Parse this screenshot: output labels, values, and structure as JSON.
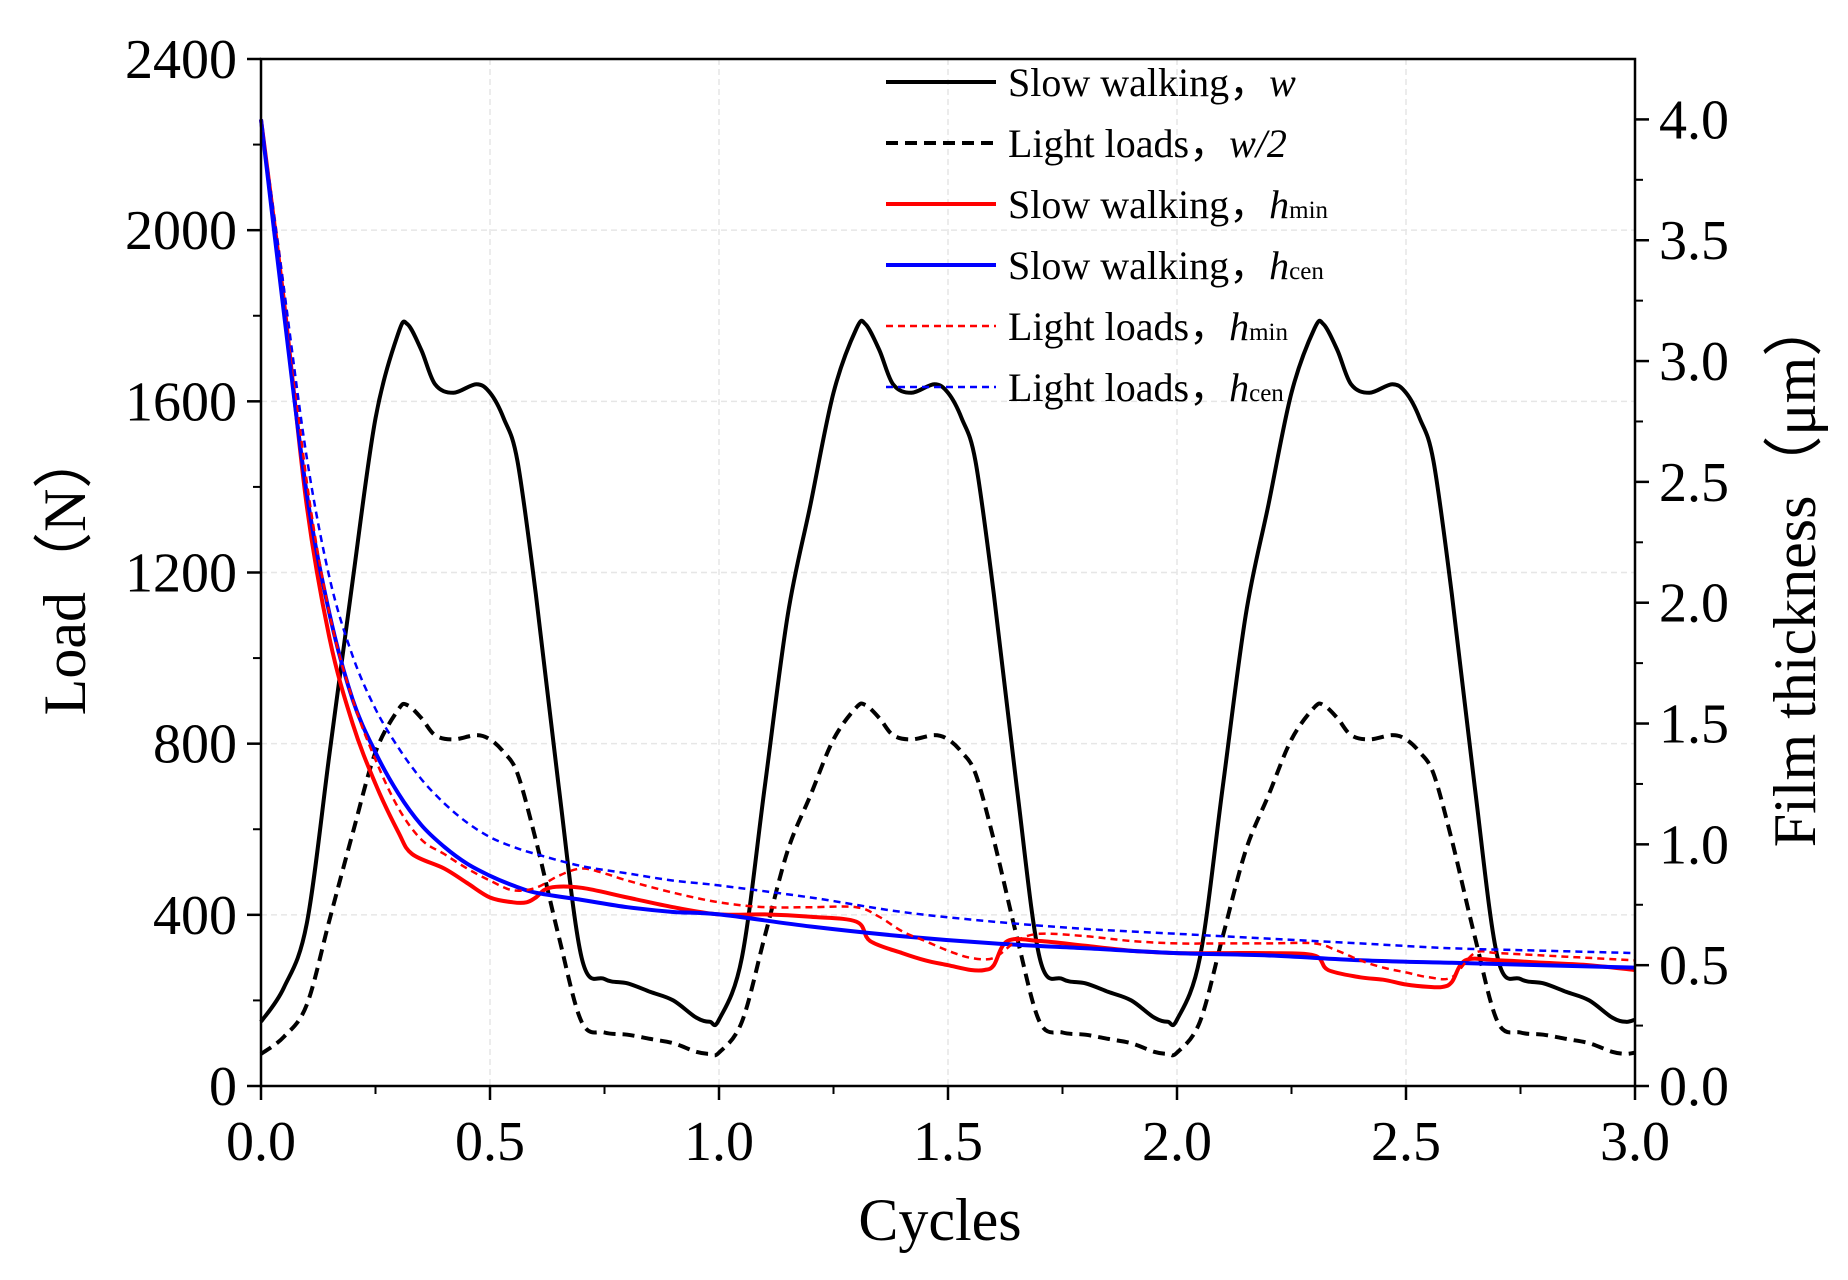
{
  "chart_data": {
    "type": "line",
    "title": "",
    "xlabel": "Cycles",
    "ylabel_left": "Load（N）",
    "ylabel_right": "Film thickness（μm）",
    "xlim": [
      0,
      3
    ],
    "ylim_left": [
      0,
      2400
    ],
    "ylim_right": [
      0,
      4.25
    ],
    "grid": true,
    "legend_position": "top-right",
    "x_ticks": [
      "0.0",
      "0.5",
      "1.0",
      "1.5",
      "2.0",
      "2.5",
      "3.0"
    ],
    "y_ticks_left": [
      "0",
      "400",
      "800",
      "1200",
      "1600",
      "2000",
      "2400"
    ],
    "y_ticks_right": [
      "0.0",
      "0.5",
      "1.0",
      "1.5",
      "2.0",
      "2.5",
      "3.0",
      "3.5",
      "4.0"
    ],
    "legend": [
      {
        "label": "Slow walking，",
        "sym": "w",
        "sub": ""
      },
      {
        "label": "Light loads，",
        "sym": "w",
        "sub": "/2"
      },
      {
        "label": "Slow walking，",
        "sym": "h",
        "sub": "min"
      },
      {
        "label": "Slow walking，",
        "sym": "h",
        "sub": "cen"
      },
      {
        "label": "Light loads，",
        "sym": "h",
        "sub": "min"
      },
      {
        "label": "Light loads，",
        "sym": "h",
        "sub": "cen"
      }
    ],
    "series": [
      {
        "name": "Slow walking, w",
        "axis": "left",
        "color": "#000000",
        "style": "solid",
        "x": [
          0,
          0.05,
          0.1,
          0.15,
          0.2,
          0.25,
          0.3,
          0.32,
          0.35,
          0.38,
          0.42,
          0.47,
          0.5,
          0.53,
          0.56,
          0.6,
          0.65,
          0.7,
          0.75,
          0.8,
          0.85,
          0.9,
          0.95,
          0.98,
          1.0,
          1.05,
          1.1,
          1.15,
          1.2,
          1.25,
          1.3,
          1.32,
          1.35,
          1.38,
          1.42,
          1.47,
          1.5,
          1.53,
          1.56,
          1.6,
          1.65,
          1.7,
          1.75,
          1.8,
          1.85,
          1.9,
          1.95,
          1.98,
          2.0,
          2.05,
          2.1,
          2.15,
          2.2,
          2.25,
          2.3,
          2.32,
          2.35,
          2.38,
          2.42,
          2.47,
          2.5,
          2.53,
          2.56,
          2.6,
          2.65,
          2.7,
          2.75,
          2.8,
          2.85,
          2.9,
          2.95,
          2.98,
          3.0
        ],
        "values": [
          150,
          230,
          380,
          780,
          1180,
          1560,
          1760,
          1780,
          1720,
          1640,
          1620,
          1640,
          1620,
          1560,
          1460,
          1150,
          700,
          300,
          250,
          240,
          220,
          200,
          160,
          150,
          155,
          300,
          700,
          1100,
          1360,
          1620,
          1770,
          1780,
          1720,
          1640,
          1620,
          1640,
          1620,
          1560,
          1460,
          1150,
          700,
          300,
          250,
          240,
          220,
          200,
          160,
          150,
          155,
          300,
          700,
          1100,
          1360,
          1620,
          1770,
          1780,
          1720,
          1640,
          1620,
          1640,
          1620,
          1560,
          1460,
          1150,
          700,
          300,
          250,
          240,
          220,
          200,
          160,
          150,
          155
        ]
      },
      {
        "name": "Light loads, w/2",
        "axis": "left",
        "color": "#000000",
        "style": "dashed",
        "x": [
          0,
          0.05,
          0.1,
          0.15,
          0.2,
          0.25,
          0.3,
          0.32,
          0.35,
          0.38,
          0.42,
          0.47,
          0.5,
          0.53,
          0.56,
          0.6,
          0.65,
          0.7,
          0.75,
          0.8,
          0.85,
          0.9,
          0.95,
          0.98,
          1.0,
          1.05,
          1.1,
          1.15,
          1.2,
          1.25,
          1.3,
          1.32,
          1.35,
          1.38,
          1.42,
          1.47,
          1.5,
          1.53,
          1.56,
          1.6,
          1.65,
          1.7,
          1.75,
          1.8,
          1.85,
          1.9,
          1.95,
          1.98,
          2.0,
          2.05,
          2.1,
          2.15,
          2.2,
          2.25,
          2.3,
          2.32,
          2.35,
          2.38,
          2.42,
          2.47,
          2.5,
          2.53,
          2.56,
          2.6,
          2.65,
          2.7,
          2.75,
          2.8,
          2.85,
          2.9,
          2.95,
          2.98,
          3.0
        ],
        "values": [
          75,
          115,
          190,
          390,
          590,
          780,
          880,
          890,
          860,
          820,
          810,
          820,
          810,
          780,
          730,
          575,
          350,
          150,
          125,
          120,
          110,
          100,
          80,
          75,
          78,
          150,
          350,
          550,
          680,
          810,
          885,
          890,
          860,
          820,
          810,
          820,
          810,
          780,
          730,
          575,
          350,
          150,
          125,
          120,
          110,
          100,
          80,
          75,
          78,
          150,
          350,
          550,
          680,
          810,
          885,
          890,
          860,
          820,
          810,
          820,
          810,
          780,
          730,
          575,
          350,
          150,
          125,
          120,
          110,
          100,
          80,
          75,
          78
        ]
      },
      {
        "name": "Slow walking, hmin",
        "axis": "right",
        "color": "#ff0000",
        "style": "solid",
        "x": [
          0,
          0.05,
          0.1,
          0.15,
          0.2,
          0.25,
          0.3,
          0.33,
          0.4,
          0.45,
          0.5,
          0.55,
          0.58,
          0.6,
          0.63,
          0.7,
          0.8,
          0.9,
          1.0,
          1.1,
          1.2,
          1.3,
          1.33,
          1.4,
          1.45,
          1.5,
          1.55,
          1.58,
          1.6,
          1.63,
          1.7,
          1.8,
          1.9,
          2.0,
          2.1,
          2.2,
          2.3,
          2.33,
          2.4,
          2.45,
          2.5,
          2.55,
          2.58,
          2.6,
          2.63,
          2.7,
          2.8,
          2.9,
          3.0
        ],
        "values": [
          4.0,
          3.25,
          2.4,
          1.85,
          1.5,
          1.25,
          1.05,
          0.96,
          0.9,
          0.84,
          0.78,
          0.76,
          0.76,
          0.78,
          0.82,
          0.82,
          0.78,
          0.74,
          0.71,
          0.71,
          0.7,
          0.68,
          0.6,
          0.55,
          0.52,
          0.5,
          0.48,
          0.48,
          0.5,
          0.6,
          0.6,
          0.58,
          0.56,
          0.55,
          0.55,
          0.55,
          0.54,
          0.48,
          0.45,
          0.44,
          0.42,
          0.41,
          0.41,
          0.43,
          0.52,
          0.52,
          0.51,
          0.5,
          0.48
        ]
      },
      {
        "name": "Slow walking, hcen",
        "axis": "right",
        "color": "#0000ff",
        "style": "solid",
        "x": [
          0,
          0.05,
          0.1,
          0.15,
          0.2,
          0.25,
          0.3,
          0.35,
          0.4,
          0.45,
          0.5,
          0.55,
          0.6,
          0.7,
          0.8,
          0.9,
          1.0,
          1.2,
          1.4,
          1.6,
          1.8,
          2.0,
          2.2,
          2.4,
          2.6,
          2.8,
          3.0
        ],
        "values": [
          4.0,
          3.2,
          2.45,
          1.95,
          1.6,
          1.38,
          1.21,
          1.08,
          0.99,
          0.92,
          0.87,
          0.83,
          0.8,
          0.77,
          0.74,
          0.72,
          0.71,
          0.66,
          0.62,
          0.59,
          0.57,
          0.55,
          0.54,
          0.52,
          0.51,
          0.5,
          0.49
        ]
      },
      {
        "name": "Light loads, hmin",
        "axis": "right",
        "color": "#ff0000",
        "style": "dotted",
        "x": [
          0,
          0.05,
          0.1,
          0.15,
          0.2,
          0.25,
          0.3,
          0.35,
          0.4,
          0.45,
          0.5,
          0.55,
          0.6,
          0.65,
          0.7,
          0.75,
          0.8,
          0.9,
          1.0,
          1.1,
          1.2,
          1.3,
          1.35,
          1.4,
          1.45,
          1.5,
          1.55,
          1.6,
          1.65,
          1.7,
          1.8,
          1.9,
          2.0,
          2.1,
          2.2,
          2.3,
          2.35,
          2.4,
          2.45,
          2.5,
          2.55,
          2.6,
          2.65,
          2.7,
          2.8,
          2.9,
          3.0
        ],
        "values": [
          4.0,
          3.3,
          2.5,
          1.95,
          1.6,
          1.35,
          1.15,
          1.02,
          0.96,
          0.9,
          0.85,
          0.81,
          0.82,
          0.87,
          0.9,
          0.88,
          0.85,
          0.8,
          0.76,
          0.74,
          0.74,
          0.74,
          0.7,
          0.64,
          0.6,
          0.56,
          0.53,
          0.53,
          0.6,
          0.63,
          0.62,
          0.6,
          0.59,
          0.59,
          0.59,
          0.59,
          0.56,
          0.52,
          0.49,
          0.47,
          0.45,
          0.45,
          0.55,
          0.55,
          0.54,
          0.53,
          0.52
        ]
      },
      {
        "name": "Light loads, hcen",
        "axis": "right",
        "color": "#0000ff",
        "style": "dotted",
        "x": [
          0,
          0.05,
          0.1,
          0.15,
          0.2,
          0.25,
          0.3,
          0.35,
          0.4,
          0.45,
          0.5,
          0.55,
          0.6,
          0.7,
          0.8,
          0.9,
          1.0,
          1.2,
          1.4,
          1.6,
          1.8,
          2.0,
          2.2,
          2.4,
          2.6,
          2.8,
          3.0
        ],
        "values": [
          4.0,
          3.3,
          2.6,
          2.1,
          1.78,
          1.56,
          1.4,
          1.27,
          1.17,
          1.09,
          1.03,
          0.99,
          0.96,
          0.91,
          0.88,
          0.85,
          0.83,
          0.78,
          0.72,
          0.68,
          0.65,
          0.63,
          0.61,
          0.59,
          0.57,
          0.56,
          0.55
        ]
      }
    ]
  }
}
